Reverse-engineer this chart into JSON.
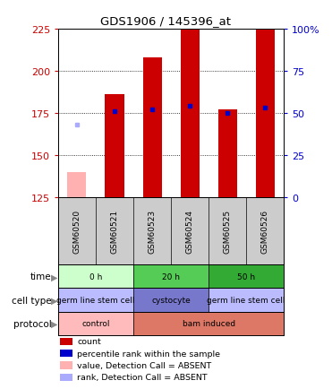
{
  "title": "GDS1906 / 145396_at",
  "samples": [
    "GSM60520",
    "GSM60521",
    "GSM60523",
    "GSM60524",
    "GSM60525",
    "GSM60526"
  ],
  "count_values": [
    null,
    186,
    208,
    225,
    177,
    225
  ],
  "count_absent": [
    140,
    null,
    null,
    null,
    null,
    null
  ],
  "rank_values": [
    null,
    176,
    177,
    179,
    175,
    178
  ],
  "rank_absent": [
    168,
    null,
    null,
    null,
    null,
    null
  ],
  "ylim_left": [
    125,
    225
  ],
  "ylim_right": [
    0,
    100
  ],
  "yticks_left": [
    125,
    150,
    175,
    200,
    225
  ],
  "yticks_right": [
    0,
    25,
    50,
    75,
    100
  ],
  "right_tick_labels": [
    "0",
    "25",
    "50",
    "75",
    "100%"
  ],
  "left_tick_labels": [
    "125",
    "150",
    "175",
    "200",
    "225"
  ],
  "bar_color_present": "#cc0000",
  "bar_color_absent": "#ffb0b0",
  "rank_color_present": "#0000cc",
  "rank_color_absent": "#aaaaff",
  "bar_width": 0.5,
  "time_groups": [
    {
      "label": "0 h",
      "cols": [
        0,
        1
      ],
      "color": "#ccffcc"
    },
    {
      "label": "20 h",
      "cols": [
        2,
        3
      ],
      "color": "#55cc55"
    },
    {
      "label": "50 h",
      "cols": [
        4,
        5
      ],
      "color": "#33aa33"
    }
  ],
  "celltype_groups": [
    {
      "label": "germ line stem cell",
      "cols": [
        0,
        1
      ],
      "color": "#bbbbff"
    },
    {
      "label": "cystocyte",
      "cols": [
        2,
        3
      ],
      "color": "#7777cc"
    },
    {
      "label": "germ line stem cell",
      "cols": [
        4,
        5
      ],
      "color": "#bbbbff"
    }
  ],
  "protocol_groups": [
    {
      "label": "control",
      "cols": [
        0,
        1
      ],
      "color": "#ffbbbb"
    },
    {
      "label": "bam induced",
      "cols": [
        2,
        5
      ],
      "color": "#dd7766"
    }
  ],
  "bg_color": "#ffffff",
  "plot_bg": "#ffffff",
  "left_axis_color": "#cc0000",
  "right_axis_color": "#0000cc",
  "sample_bg": "#cccccc",
  "row_label_color": "#333333",
  "arrow_color": "#888888"
}
